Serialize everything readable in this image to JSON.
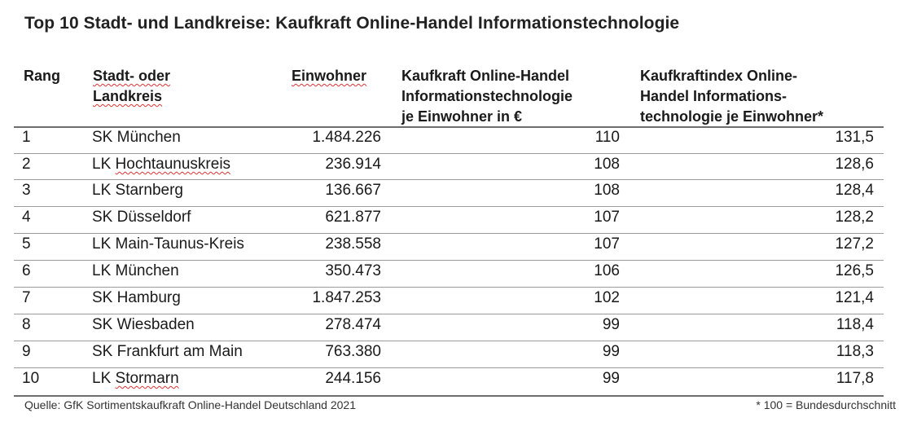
{
  "title": "Top 10 Stadt- und Landkreise: Kaufkraft Online-Handel Informationstechnologie",
  "columns": {
    "rank": "Rang",
    "name_line1": "Stadt- oder",
    "name_line2": "Landkreis",
    "population": "Einwohner",
    "kaufkraft_line1": "Kaufkraft Online-Handel",
    "kaufkraft_line2": "Informationstechnologie",
    "kaufkraft_line3": "je Einwohner in €",
    "index_line1": "Kaufkraftindex Online-",
    "index_line2": "Handel Informations-",
    "index_line3": "technologie je Einwohner*"
  },
  "rows": [
    {
      "rank": "1",
      "prefix": "SK",
      "name": "München",
      "population": "1.484.226",
      "kaufkraft": "110",
      "index": "131,5"
    },
    {
      "rank": "2",
      "prefix": "LK",
      "name": "Hochtaunuskreis",
      "population": "236.914",
      "kaufkraft": "108",
      "index": "128,6"
    },
    {
      "rank": "3",
      "prefix": "LK",
      "name": "Starnberg",
      "population": "136.667",
      "kaufkraft": "108",
      "index": "128,4"
    },
    {
      "rank": "4",
      "prefix": "SK",
      "name": "Düsseldorf",
      "population": "621.877",
      "kaufkraft": "107",
      "index": "128,2"
    },
    {
      "rank": "5",
      "prefix": "LK",
      "name": "Main-Taunus-Kreis",
      "population": "238.558",
      "kaufkraft": "107",
      "index": "127,2"
    },
    {
      "rank": "6",
      "prefix": "LK",
      "name": "München",
      "population": "350.473",
      "kaufkraft": "106",
      "index": "126,5"
    },
    {
      "rank": "7",
      "prefix": "SK",
      "name": "Hamburg",
      "population": "1.847.253",
      "kaufkraft": "102",
      "index": "121,4"
    },
    {
      "rank": "8",
      "prefix": "SK",
      "name": "Wiesbaden",
      "population": "278.474",
      "kaufkraft": "99",
      "index": "118,4"
    },
    {
      "rank": "9",
      "prefix": "SK",
      "name": "Frankfurt am Main",
      "population": "763.380",
      "kaufkraft": "99",
      "index": "118,3"
    },
    {
      "rank": "10",
      "prefix": "LK",
      "name": "Stormarn",
      "population": "244.156",
      "kaufkraft": "99",
      "index": "117,8"
    }
  ],
  "source": "Quelle: GfK Sortimentskaufkraft Online-Handel Deutschland 2021",
  "footnote": "* 100 = Bundesdurchschnitt",
  "spellcheck_marked": [
    "Stadt- oder",
    "Landkreis",
    "Einwohner",
    "Hochtaunuskreis",
    "Stormarn"
  ],
  "colors": {
    "text": "#1a1a1a",
    "rule": "#6d6d6d",
    "spellcheck": "#d33333"
  }
}
